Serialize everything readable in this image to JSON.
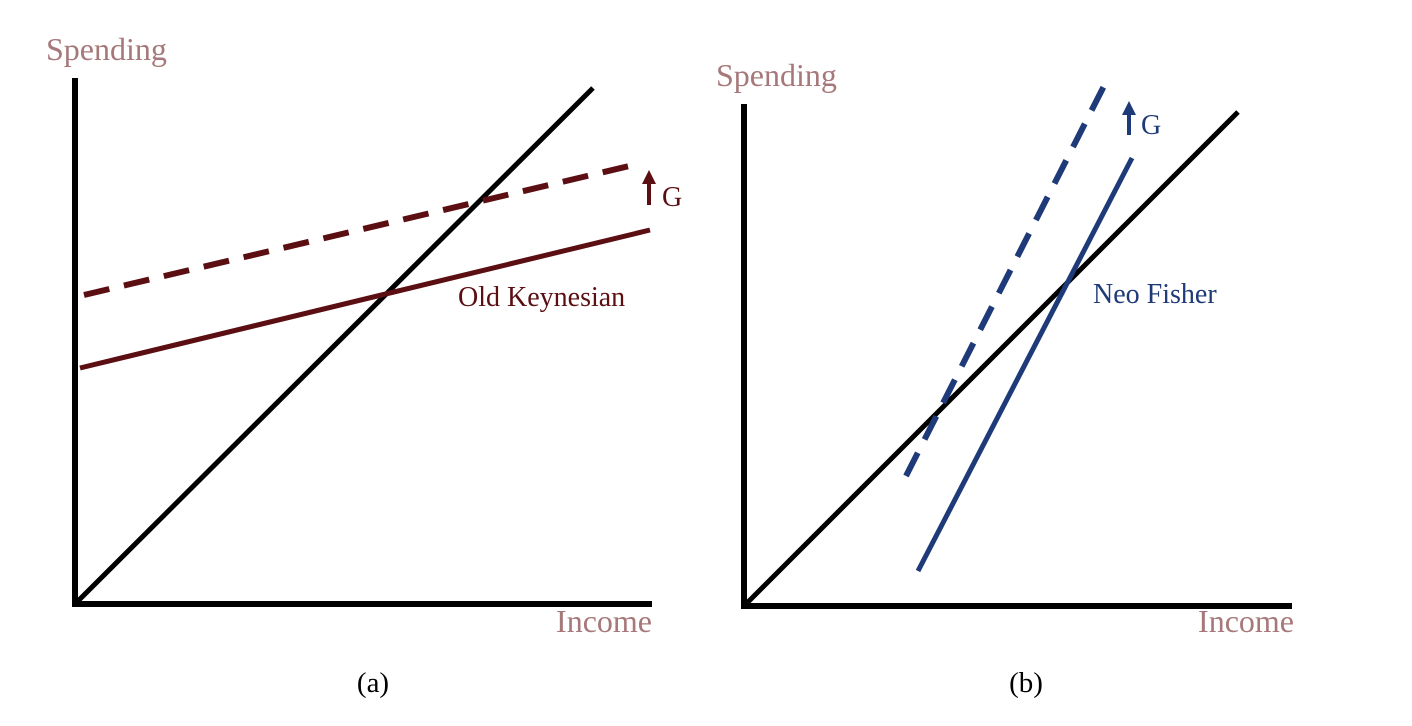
{
  "panels": [
    {
      "id": "a",
      "caption": "(a)",
      "y_axis_label": "Spending",
      "x_axis_label": "Income",
      "curve_label": "Old Keynesian",
      "shift_label": "G",
      "curve_color": "#5c0f12"
    },
    {
      "id": "b",
      "caption": "(b)",
      "y_axis_label": "Spending",
      "x_axis_label": "Income",
      "curve_label": "Neo Fisher",
      "shift_label": "G",
      "curve_color": "#1e3a78"
    }
  ],
  "colors": {
    "axis": "#000000",
    "axis_label": "#a7787a",
    "forty_five_line": "#000000"
  }
}
